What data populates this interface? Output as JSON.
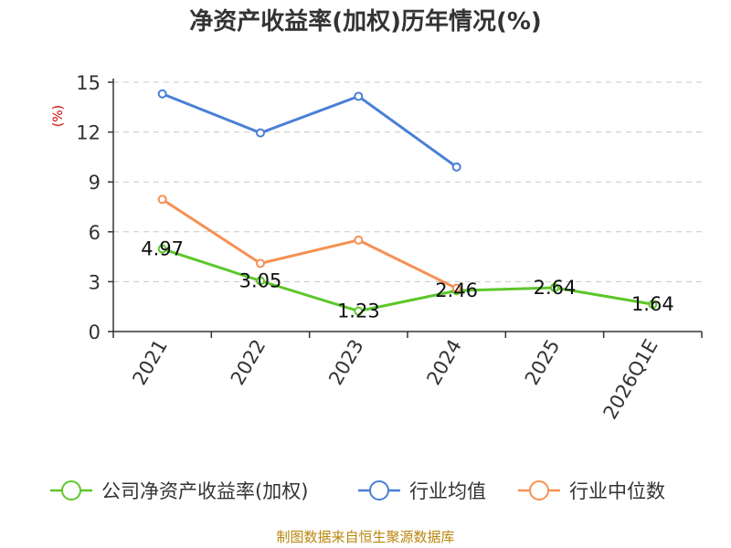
{
  "chart_data": {
    "type": "line",
    "title": "净资产收益率(加权)历年情况(%)",
    "ylabel": "(%)",
    "categories": [
      "2021",
      "2022",
      "2023",
      "2024",
      "2025",
      "2026Q1E"
    ],
    "y_ticks": [
      0,
      3,
      6,
      9,
      12,
      15
    ],
    "ylim": [
      0,
      15
    ],
    "grid": "horizontal dashed",
    "legend_position": "bottom",
    "series": [
      {
        "name": "公司净资产收益率(加权)",
        "color": "#5cc72a",
        "values": [
          4.97,
          3.05,
          1.23,
          2.46,
          2.64,
          1.64
        ],
        "labels": [
          "4.97",
          "3.05",
          "1.23",
          "2.46",
          "2.64",
          "1.64"
        ]
      },
      {
        "name": "行业均值",
        "color": "#4a7fd6",
        "values": [
          14.3,
          11.95,
          14.15,
          9.9,
          null,
          null
        ]
      },
      {
        "name": "行业中位数",
        "color": "#f59155",
        "values": [
          7.95,
          4.1,
          5.5,
          2.6,
          null,
          null
        ]
      }
    ],
    "source": "制图数据来自恒生聚源数据库"
  }
}
